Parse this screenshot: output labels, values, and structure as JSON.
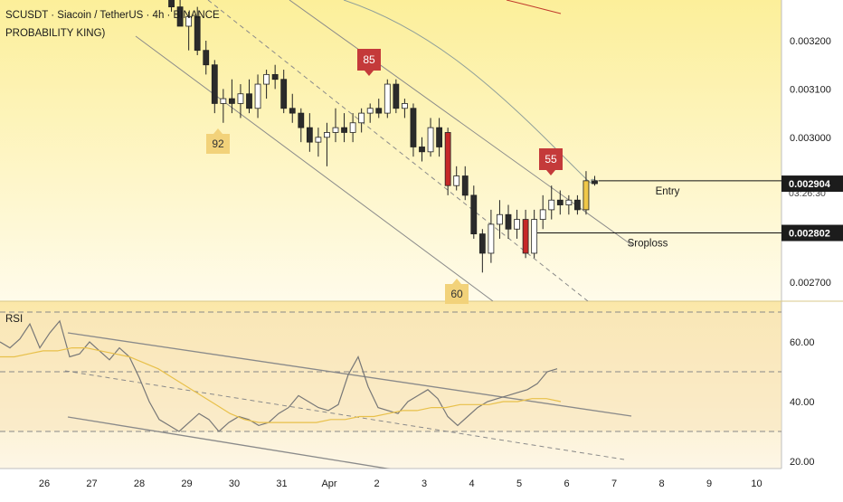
{
  "header": {
    "symbol_line": "SCUSDT · Siacoin / TetherUS · 4h · BINANCE",
    "indicator_label": "PROBABILITY KING)"
  },
  "rsi_panel": {
    "label": "RSI"
  },
  "colors": {
    "bull": "#ffffff",
    "bear": "#2b2b2b",
    "highlight_bear": "#c62828",
    "highlight_bull": "#f0c848",
    "marker_red": "#c43a3a",
    "marker_gold": "#f2d27a",
    "rsi_line": "#777777",
    "rsi_ma": "#e8c04a",
    "channel": "#8a8a8a"
  },
  "chart_data": [
    {
      "type": "candlestick",
      "title": "SCUSDT · Siacoin / TetherUS · 4h · BINANCE",
      "y_ticks": [
        "0.003200",
        "0.003100",
        "0.003000",
        "0.002700"
      ],
      "ylim": [
        0.00268,
        0.00335
      ],
      "x_ticks": [
        "26",
        "27",
        "28",
        "29",
        "30",
        "31",
        "Apr",
        "2",
        "3",
        "4",
        "5",
        "6",
        "7",
        "8",
        "9",
        "10"
      ],
      "price_tags": [
        {
          "label": "0.002910",
          "sublabel": "03:26:30",
          "value": 0.00291,
          "style": "plain"
        },
        {
          "label": "0.002904",
          "value": 0.002904,
          "style": "dark"
        },
        {
          "label": "0.002802",
          "value": 0.002802,
          "style": "dark"
        }
      ],
      "levels": [
        {
          "name": "Entry",
          "value": 0.00291
        },
        {
          "name": "Sroploss",
          "value": 0.002802
        }
      ],
      "markers": [
        {
          "label": "92",
          "type": "bottom"
        },
        {
          "label": "85",
          "type": "top"
        },
        {
          "label": "60",
          "type": "bottom"
        },
        {
          "label": "55",
          "type": "top"
        }
      ],
      "candles": [
        {
          "t": 0,
          "o": 0.00345,
          "h": 0.00347,
          "l": 0.00335,
          "c": 0.00335
        },
        {
          "t": 1,
          "o": 0.00335,
          "h": 0.00338,
          "l": 0.00326,
          "c": 0.00327
        },
        {
          "t": 2,
          "o": 0.00327,
          "h": 0.00333,
          "l": 0.00323,
          "c": 0.00323
        },
        {
          "t": 3,
          "o": 0.00323,
          "h": 0.00326,
          "l": 0.00318,
          "c": 0.00325
        },
        {
          "t": 4,
          "o": 0.00325,
          "h": 0.00327,
          "l": 0.00317,
          "c": 0.00318
        },
        {
          "t": 5,
          "o": 0.00318,
          "h": 0.0032,
          "l": 0.00313,
          "c": 0.00315
        },
        {
          "t": 6,
          "o": 0.00315,
          "h": 0.00316,
          "l": 0.00305,
          "c": 0.00307
        },
        {
          "t": 7,
          "o": 0.00307,
          "h": 0.0031,
          "l": 0.00303,
          "c": 0.00308
        },
        {
          "t": 8,
          "o": 0.00308,
          "h": 0.00312,
          "l": 0.00305,
          "c": 0.00307
        },
        {
          "t": 9,
          "o": 0.00307,
          "h": 0.00311,
          "l": 0.00304,
          "c": 0.00309
        },
        {
          "t": 10,
          "o": 0.00309,
          "h": 0.00312,
          "l": 0.00305,
          "c": 0.00306
        },
        {
          "t": 11,
          "o": 0.00306,
          "h": 0.00313,
          "l": 0.00304,
          "c": 0.00311
        },
        {
          "t": 12,
          "o": 0.00311,
          "h": 0.00314,
          "l": 0.00308,
          "c": 0.00313
        },
        {
          "t": 13,
          "o": 0.00313,
          "h": 0.00315,
          "l": 0.0031,
          "c": 0.00312
        },
        {
          "t": 14,
          "o": 0.00312,
          "h": 0.00314,
          "l": 0.00305,
          "c": 0.00306
        },
        {
          "t": 15,
          "o": 0.00306,
          "h": 0.00309,
          "l": 0.00303,
          "c": 0.00305
        },
        {
          "t": 16,
          "o": 0.00305,
          "h": 0.00306,
          "l": 0.00299,
          "c": 0.00302
        },
        {
          "t": 17,
          "o": 0.00302,
          "h": 0.00305,
          "l": 0.00297,
          "c": 0.00299
        },
        {
          "t": 18,
          "o": 0.00299,
          "h": 0.00302,
          "l": 0.00296,
          "c": 0.003
        },
        {
          "t": 19,
          "o": 0.003,
          "h": 0.00303,
          "l": 0.00294,
          "c": 0.00301
        },
        {
          "t": 20,
          "o": 0.00301,
          "h": 0.00306,
          "l": 0.00299,
          "c": 0.00302
        },
        {
          "t": 21,
          "o": 0.00302,
          "h": 0.00305,
          "l": 0.00299,
          "c": 0.00301
        },
        {
          "t": 22,
          "o": 0.00301,
          "h": 0.00305,
          "l": 0.00299,
          "c": 0.00303
        },
        {
          "t": 23,
          "o": 0.00303,
          "h": 0.00306,
          "l": 0.00301,
          "c": 0.00305
        },
        {
          "t": 24,
          "o": 0.00305,
          "h": 0.00307,
          "l": 0.00303,
          "c": 0.00306
        },
        {
          "t": 25,
          "o": 0.00306,
          "h": 0.00308,
          "l": 0.00304,
          "c": 0.00305
        },
        {
          "t": 26,
          "o": 0.00305,
          "h": 0.00312,
          "l": 0.00304,
          "c": 0.00311
        },
        {
          "t": 27,
          "o": 0.00311,
          "h": 0.00312,
          "l": 0.00305,
          "c": 0.00306
        },
        {
          "t": 28,
          "o": 0.00306,
          "h": 0.00308,
          "l": 0.00304,
          "c": 0.00307
        },
        {
          "t": 29,
          "o": 0.00306,
          "h": 0.00307,
          "l": 0.00296,
          "c": 0.00298
        },
        {
          "t": 30,
          "o": 0.00298,
          "h": 0.003,
          "l": 0.00295,
          "c": 0.00297
        },
        {
          "t": 31,
          "o": 0.00297,
          "h": 0.00304,
          "l": 0.00296,
          "c": 0.00302
        },
        {
          "t": 32,
          "o": 0.00302,
          "h": 0.00304,
          "l": 0.00296,
          "c": 0.00298
        },
        {
          "t": 33,
          "o": 0.00301,
          "h": 0.00302,
          "l": 0.00288,
          "c": 0.0029,
          "hl": "bear"
        },
        {
          "t": 34,
          "o": 0.0029,
          "h": 0.00294,
          "l": 0.00289,
          "c": 0.00292
        },
        {
          "t": 35,
          "o": 0.00292,
          "h": 0.00294,
          "l": 0.00287,
          "c": 0.00288
        },
        {
          "t": 36,
          "o": 0.00288,
          "h": 0.0029,
          "l": 0.00279,
          "c": 0.0028
        },
        {
          "t": 37,
          "o": 0.0028,
          "h": 0.00281,
          "l": 0.00272,
          "c": 0.00276
        },
        {
          "t": 38,
          "o": 0.00276,
          "h": 0.00285,
          "l": 0.00274,
          "c": 0.00282
        },
        {
          "t": 39,
          "o": 0.00282,
          "h": 0.00287,
          "l": 0.00279,
          "c": 0.00284
        },
        {
          "t": 40,
          "o": 0.00284,
          "h": 0.00286,
          "l": 0.00279,
          "c": 0.00281
        },
        {
          "t": 41,
          "o": 0.00281,
          "h": 0.00285,
          "l": 0.00279,
          "c": 0.00283
        },
        {
          "t": 42,
          "o": 0.00283,
          "h": 0.00285,
          "l": 0.00275,
          "c": 0.00276,
          "hl": "bear"
        },
        {
          "t": 43,
          "o": 0.00276,
          "h": 0.00285,
          "l": 0.00275,
          "c": 0.00283
        },
        {
          "t": 44,
          "o": 0.00283,
          "h": 0.00288,
          "l": 0.00281,
          "c": 0.00285
        },
        {
          "t": 45,
          "o": 0.00285,
          "h": 0.0029,
          "l": 0.00283,
          "c": 0.00287
        },
        {
          "t": 46,
          "o": 0.00287,
          "h": 0.00289,
          "l": 0.00284,
          "c": 0.00286
        },
        {
          "t": 47,
          "o": 0.00286,
          "h": 0.00288,
          "l": 0.00284,
          "c": 0.00287
        },
        {
          "t": 48,
          "o": 0.00287,
          "h": 0.00288,
          "l": 0.00284,
          "c": 0.00285
        },
        {
          "t": 49,
          "o": 0.00285,
          "h": 0.00293,
          "l": 0.00284,
          "c": 0.00291,
          "hl": "bull"
        },
        {
          "t": 50,
          "o": 0.00291,
          "h": 0.00292,
          "l": 0.0029,
          "c": 0.002904
        }
      ]
    },
    {
      "type": "line",
      "title": "RSI",
      "y_ticks": [
        "60.00",
        "40.00",
        "20.00"
      ],
      "ylim": [
        18,
        72
      ],
      "bands": [
        70,
        50,
        30
      ],
      "series": [
        {
          "values": [
            60,
            58,
            61,
            66,
            58,
            63,
            67,
            55,
            56,
            60,
            57,
            54,
            58,
            55,
            48,
            40,
            34,
            32,
            30,
            33,
            36,
            34,
            30,
            33,
            35,
            34,
            32,
            33,
            36,
            38,
            42,
            40,
            38,
            37,
            39,
            49,
            55,
            45,
            38,
            37,
            36,
            40,
            42,
            44,
            41,
            35,
            32,
            35,
            38,
            40,
            41,
            42,
            43,
            44,
            46,
            50,
            51
          ]
        },
        {
          "values": [
            55,
            55,
            56,
            57,
            57,
            58,
            58,
            57,
            56,
            55,
            53,
            51,
            48,
            45,
            42,
            39,
            36,
            34,
            33,
            33,
            33,
            33,
            33,
            34,
            34,
            35,
            35,
            36,
            37,
            37,
            38,
            38,
            39,
            39,
            39,
            40,
            40,
            41,
            41,
            40
          ]
        }
      ]
    }
  ]
}
